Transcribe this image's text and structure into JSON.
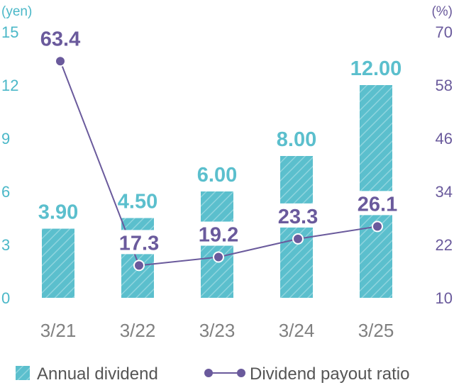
{
  "chart_data": {
    "type": "bar",
    "categories": [
      "3/21",
      "3/22",
      "3/23",
      "3/24",
      "3/25"
    ],
    "series": [
      {
        "name": "Annual dividend",
        "type": "bar",
        "axis": "left",
        "values": [
          3.9,
          4.5,
          6.0,
          8.0,
          12.0
        ],
        "labels": [
          "3.90",
          "4.50",
          "6.00",
          "8.00",
          "12.00"
        ],
        "color": "#5bbfcd"
      },
      {
        "name": "Dividend payout ratio",
        "type": "line",
        "axis": "right",
        "values": [
          63.4,
          17.3,
          19.2,
          23.3,
          26.1
        ],
        "labels": [
          "63.4",
          "17.3",
          "19.2",
          "23.3",
          "26.1"
        ],
        "color": "#6a5a9c"
      }
    ],
    "left_axis": {
      "unit": "(yen)",
      "ticks": [
        "0",
        "3",
        "6",
        "9",
        "12",
        "15"
      ],
      "ylim": [
        0,
        15
      ]
    },
    "right_axis": {
      "unit": "(%)",
      "ticks": [
        "10",
        "22",
        "34",
        "46",
        "58",
        "70"
      ],
      "ylim": [
        10,
        70
      ]
    },
    "legend_position": "bottom-left",
    "grid": false
  }
}
